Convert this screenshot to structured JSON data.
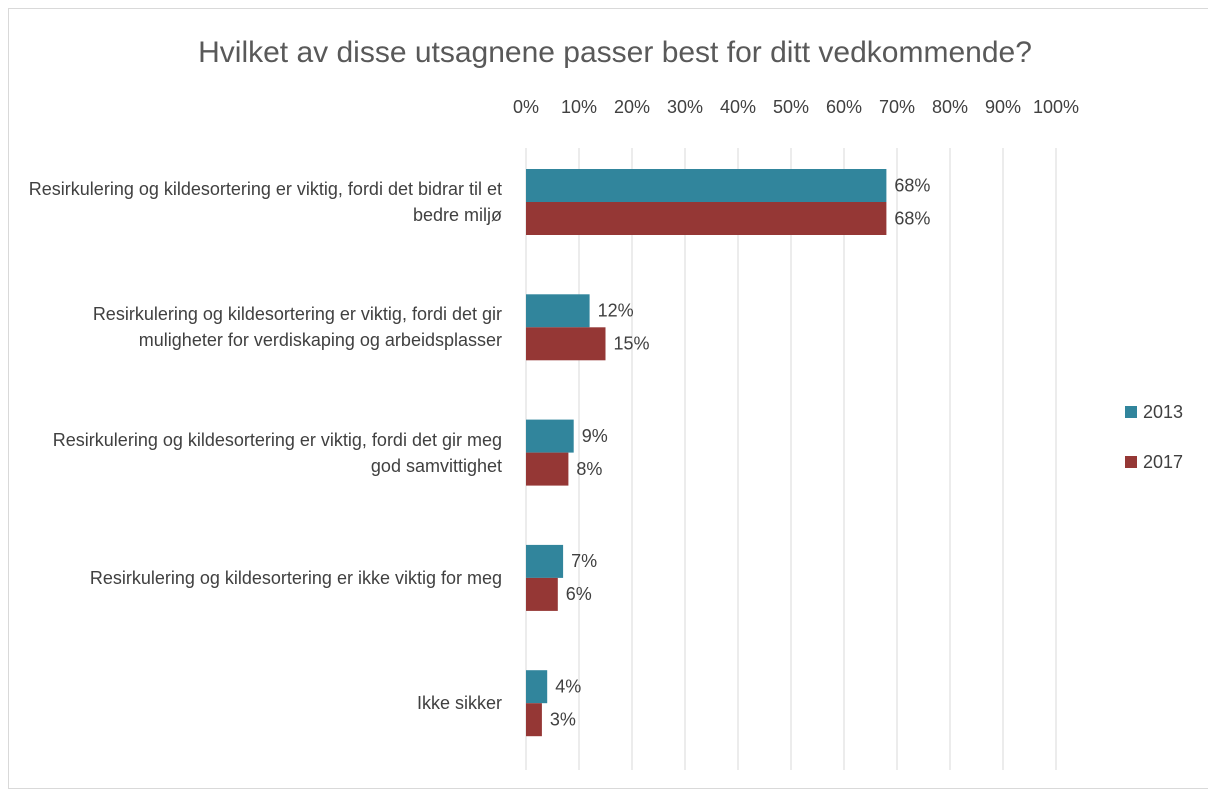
{
  "chart_data": {
    "type": "barh",
    "title": "Hvilket av disse utsagnene passer best for ditt vedkommende?",
    "categories": [
      "Resirkulering og kildesortering er viktig, fordi det bidrar til et bedre miljø",
      "Resirkulering og kildesortering er viktig, fordi det gir muligheter for verdiskaping og arbeidsplasser",
      "Resirkulering og kildesortering er viktig, fordi det gir meg god samvittighet",
      "Resirkulering og kildesortering er ikke viktig for meg",
      "Ikke sikker"
    ],
    "series": [
      {
        "name": "2013",
        "color": "#31859c",
        "values": [
          68,
          12,
          9,
          7,
          4
        ],
        "value_labels": [
          "68%",
          "12%",
          "9%",
          "7%",
          "4%"
        ]
      },
      {
        "name": "2017",
        "color": "#953735",
        "values": [
          68,
          15,
          8,
          6,
          3
        ],
        "value_labels": [
          "68%",
          "15%",
          "8%",
          "6%",
          "3%"
        ]
      }
    ],
    "xlim": [
      0,
      100
    ],
    "xticks": [
      {
        "value": 0,
        "label": "0%"
      },
      {
        "value": 10,
        "label": "10%"
      },
      {
        "value": 20,
        "label": "20%"
      },
      {
        "value": 30,
        "label": "30%"
      },
      {
        "value": 40,
        "label": "40%"
      },
      {
        "value": 50,
        "label": "50%"
      },
      {
        "value": 60,
        "label": "60%"
      },
      {
        "value": 70,
        "label": "70%"
      },
      {
        "value": 80,
        "label": "80%"
      },
      {
        "value": 90,
        "label": "90%"
      },
      {
        "value": 100,
        "label": "100%"
      }
    ],
    "grid": true,
    "legend": "right"
  }
}
